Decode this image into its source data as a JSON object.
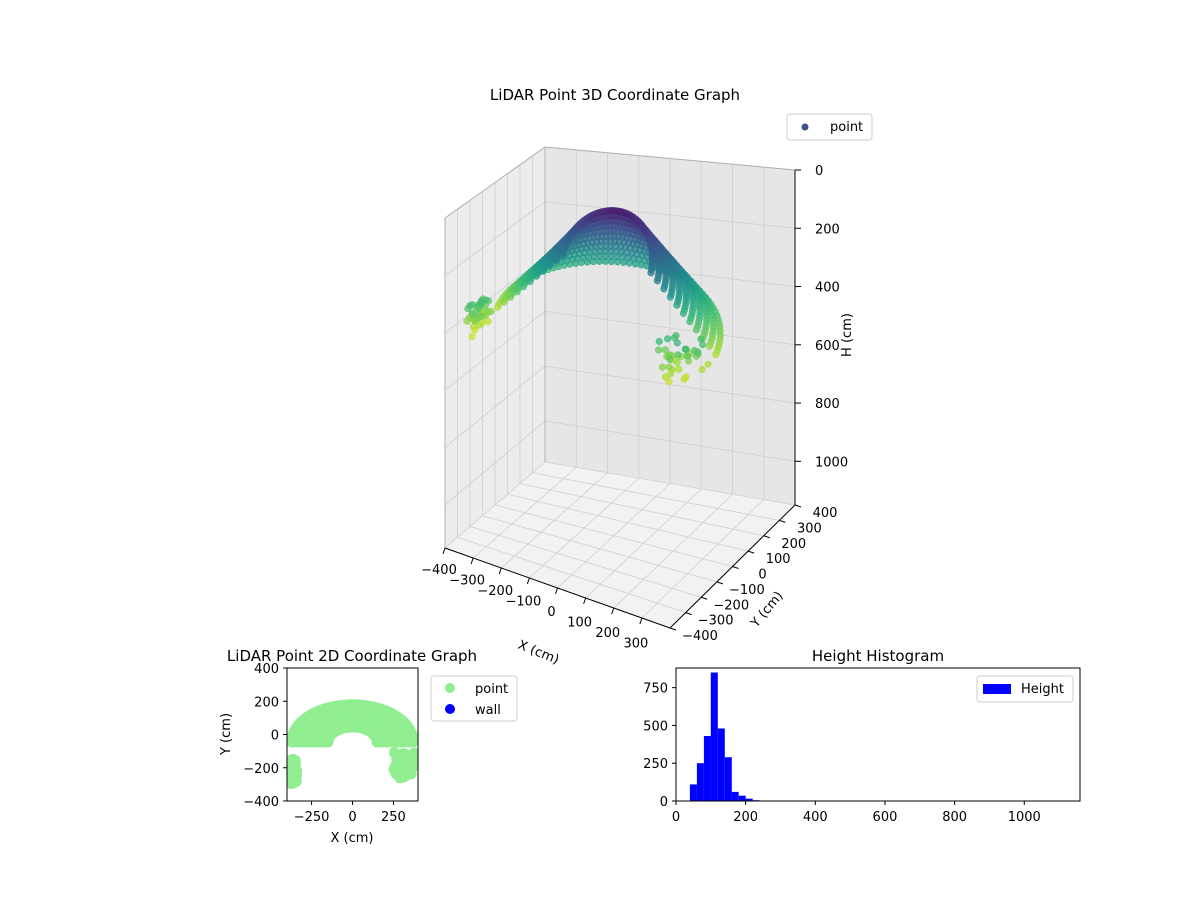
{
  "chart_data": [
    {
      "type": "scatter",
      "title": "LiDAR Point 3D Coordinate Graph",
      "xlabel": "X (cm)",
      "ylabel": "Y (cm)",
      "zlabel": "H (cm)",
      "xlim": [
        -400,
        400
      ],
      "ylim": [
        -400,
        400
      ],
      "zlim": [
        1150,
        0
      ],
      "x_ticks": [
        "−400",
        "−300",
        "−200",
        "−100",
        "0",
        "100",
        "200",
        "300"
      ],
      "y_ticks": [
        "−400",
        "−300",
        "−200",
        "−100",
        "0",
        "100",
        "200",
        "300",
        "400"
      ],
      "z_ticks": [
        "0",
        "200",
        "400",
        "600",
        "800",
        "1000"
      ],
      "colormap": "viridis",
      "series": [
        {
          "name": "point",
          "color": "#3b528b"
        }
      ],
      "legend": "top-right",
      "grid": true
    },
    {
      "type": "scatter",
      "title": "LiDAR Point 2D Coordinate Graph",
      "xlabel": "X (cm)",
      "ylabel": "Y (cm)",
      "xlim": [
        -400,
        400
      ],
      "ylim": [
        -400,
        400
      ],
      "x_ticks": [
        "−250",
        "0",
        "250"
      ],
      "y_ticks": [
        "400",
        "200",
        "0",
        "−200",
        "−400"
      ],
      "series": [
        {
          "name": "point",
          "color": "#90ee90"
        },
        {
          "name": "wall",
          "color": "#0000ff"
        }
      ],
      "legend": "outside-right"
    },
    {
      "type": "bar",
      "title": "Height Histogram",
      "xlim": [
        0,
        1160
      ],
      "ylim": [
        0,
        880
      ],
      "x_ticks": [
        "0",
        "200",
        "400",
        "600",
        "800",
        "1000"
      ],
      "y_ticks": [
        "0",
        "250",
        "500",
        "750"
      ],
      "bin_width": 20,
      "bins": [
        [
          40,
          110
        ],
        [
          60,
          250
        ],
        [
          80,
          430
        ],
        [
          100,
          850
        ],
        [
          120,
          480
        ],
        [
          140,
          290
        ],
        [
          160,
          60
        ],
        [
          180,
          35
        ],
        [
          200,
          15
        ],
        [
          220,
          5
        ],
        [
          240,
          2
        ],
        [
          260,
          1
        ]
      ],
      "series": [
        {
          "name": "Height",
          "color": "#0000ff"
        }
      ],
      "legend": "top-right"
    }
  ]
}
